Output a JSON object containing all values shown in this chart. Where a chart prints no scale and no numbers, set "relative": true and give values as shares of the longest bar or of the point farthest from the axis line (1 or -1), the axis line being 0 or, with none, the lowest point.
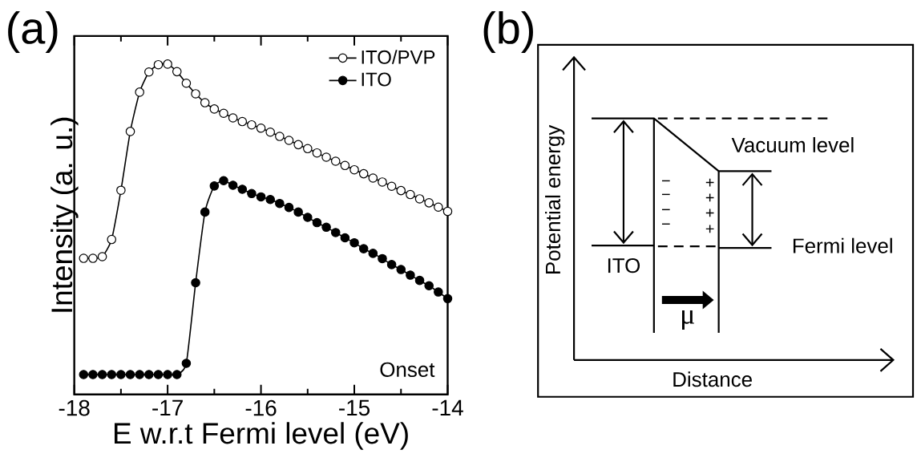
{
  "chart_data": [
    {
      "type": "line",
      "title": "(a)",
      "xlabel": "E w.r.t Fermi level (eV)",
      "ylabel": "Intensity (a. u.)",
      "relative": true,
      "marker": "circle",
      "legend": "top right",
      "x": [
        -17.9,
        -17.8,
        -17.7,
        -17.6,
        -17.5,
        -17.4,
        -17.3,
        -17.2,
        -17.1,
        -17.0,
        -16.9,
        -16.8,
        -16.7,
        -16.6,
        -16.5,
        -16.4,
        -16.3,
        -16.2,
        -16.1,
        -16.0,
        -15.9,
        -15.8,
        -15.7,
        -15.6,
        -15.5,
        -15.4,
        -15.3,
        -15.2,
        -15.1,
        -15.0,
        -14.9,
        -14.8,
        -14.7,
        -14.6,
        -14.5,
        -14.4,
        -14.3,
        -14.2,
        -14.1,
        -14.0
      ],
      "xlim": [
        -18,
        -14
      ],
      "xticks": [
        -18,
        -17,
        -16,
        -15,
        -14
      ],
      "series": [
        {
          "name": "ITO/PVP",
          "color": "#000000",
          "values": [
            0.412,
            0.412,
            0.417,
            0.469,
            0.618,
            0.796,
            0.915,
            0.976,
            0.998,
            1.0,
            0.977,
            0.942,
            0.91,
            0.883,
            0.864,
            0.851,
            0.837,
            0.826,
            0.816,
            0.806,
            0.794,
            0.781,
            0.769,
            0.756,
            0.744,
            0.731,
            0.718,
            0.706,
            0.693,
            0.68,
            0.668,
            0.655,
            0.643,
            0.63,
            0.617,
            0.605,
            0.592,
            0.58,
            0.567,
            0.554
          ]
        },
        {
          "name": "ITO",
          "color": "#000000",
          "values": [
            0.06,
            0.06,
            0.06,
            0.06,
            0.06,
            0.06,
            0.06,
            0.06,
            0.06,
            0.06,
            0.06,
            0.094,
            0.338,
            0.552,
            0.631,
            0.647,
            0.633,
            0.621,
            0.608,
            0.598,
            0.59,
            0.578,
            0.566,
            0.552,
            0.536,
            0.52,
            0.506,
            0.49,
            0.474,
            0.459,
            0.441,
            0.427,
            0.411,
            0.393,
            0.378,
            0.361,
            0.345,
            0.329,
            0.31,
            0.29
          ]
        }
      ],
      "annotations": [
        "Onset"
      ]
    },
    {
      "type": "other",
      "title": "(b)",
      "xlabel": "Distance",
      "ylabel": "Potential energy",
      "annotations": [
        "Vacuum level",
        "Fermi level",
        "ITO",
        "μ",
        "−",
        "−",
        "−",
        "−",
        "+",
        "+",
        "+",
        "+"
      ]
    }
  ]
}
